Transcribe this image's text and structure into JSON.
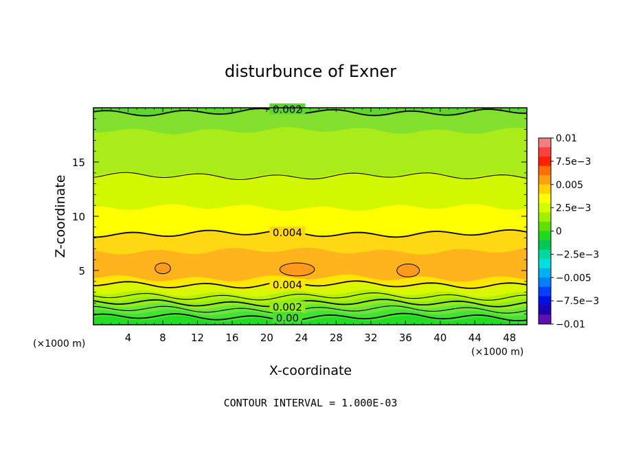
{
  "chart_data": {
    "type": "heatmap",
    "title": "disturbunce of Exner",
    "xlabel": "X-coordinate",
    "ylabel": "Z-coordinate",
    "x_unit": "(×1000 m)",
    "z_unit": "(×1000 m)",
    "xlim": [
      0,
      50
    ],
    "ylim": [
      0,
      20
    ],
    "x_ticks": [
      4,
      8,
      12,
      16,
      20,
      24,
      28,
      32,
      36,
      40,
      44,
      48
    ],
    "y_ticks": [
      5,
      10,
      15
    ],
    "footer": "CONTOUR INTERVAL = 1.000E-03",
    "grid": false,
    "legend_position": "right",
    "colorbar": {
      "labels": [
        {
          "value": 0.01,
          "text": "0.01"
        },
        {
          "value": 0.0075,
          "text": "7.5e−3"
        },
        {
          "value": 0.005,
          "text": "0.005"
        },
        {
          "value": 0.0025,
          "text": "2.5e−3"
        },
        {
          "value": 0,
          "text": "0"
        },
        {
          "value": -0.0025,
          "text": "−2.5e−3"
        },
        {
          "value": -0.005,
          "text": "−0.005"
        },
        {
          "value": -0.0075,
          "text": "−7.5e−3"
        },
        {
          "value": -0.01,
          "text": "−0.01"
        }
      ],
      "colors_top_to_bottom": [
        "#f08080",
        "#ff4040",
        "#ff2000",
        "#ff7000",
        "#ffa010",
        "#ffd200",
        "#ffff00",
        "#d2ff00",
        "#a0f000",
        "#60e000",
        "#20d820",
        "#00c850",
        "#00d8a0",
        "#00e0e0",
        "#00b0f0",
        "#0080ff",
        "#0040ff",
        "#0010e0",
        "#2000b0",
        "#6010b0"
      ]
    },
    "bands": [
      {
        "z_bottom": 0.0,
        "z_top": 0.5,
        "color": "#22dd22"
      },
      {
        "z_bottom": 0.5,
        "z_top": 1.1,
        "color": "#44e233"
      },
      {
        "z_bottom": 1.1,
        "z_top": 1.7,
        "color": "#6ae63b"
      },
      {
        "z_bottom": 1.7,
        "z_top": 2.3,
        "color": "#90ec1a"
      },
      {
        "z_bottom": 2.3,
        "z_top": 2.9,
        "color": "#b4f200"
      },
      {
        "z_bottom": 2.9,
        "z_top": 3.6,
        "color": "#d8f700"
      },
      {
        "z_bottom": 3.6,
        "z_top": 4.3,
        "color": "#fde600"
      },
      {
        "z_bottom": 4.3,
        "z_top": 6.8,
        "color": "#ffb31c"
      },
      {
        "z_bottom": 6.8,
        "z_top": 8.5,
        "color": "#ffd814"
      },
      {
        "z_bottom": 8.5,
        "z_top": 10.8,
        "color": "#ffff00"
      },
      {
        "z_bottom": 10.8,
        "z_top": 13.8,
        "color": "#d2f800"
      },
      {
        "z_bottom": 13.8,
        "z_top": 17.9,
        "color": "#a9ec19"
      },
      {
        "z_bottom": 17.9,
        "z_top": 19.5,
        "color": "#84e02e"
      },
      {
        "z_bottom": 19.5,
        "z_top": 20.0,
        "color": "#5fd62f"
      }
    ],
    "contours": [
      {
        "z": 0.7,
        "label": "0.00",
        "label_x": 20
      },
      {
        "z": 1.4,
        "label": "",
        "label_x": null
      },
      {
        "z": 2.0,
        "label": "0.002",
        "label_x": 20
      },
      {
        "z": 2.6,
        "label": "",
        "label_x": null
      },
      {
        "z": 3.7,
        "label": "0.004",
        "label_x": 20
      },
      {
        "z": 8.4,
        "label": "0.004",
        "label_x": 20
      },
      {
        "z": 13.7,
        "label": "",
        "label_x": null
      },
      {
        "z": 19.6,
        "label": "0.002",
        "label_x": 20
      }
    ],
    "closed_contours": [
      {
        "x_center": 8.0,
        "z_center": 5.2,
        "x_radius": 0.9,
        "z_radius": 0.5,
        "color": "#ff9a1c"
      },
      {
        "x_center": 23.5,
        "z_center": 5.1,
        "x_radius": 2.0,
        "z_radius": 0.6,
        "color": "#ff9a1c"
      },
      {
        "x_center": 36.3,
        "z_center": 5.0,
        "x_radius": 1.3,
        "z_radius": 0.6,
        "color": "#ff9a1c"
      }
    ]
  }
}
